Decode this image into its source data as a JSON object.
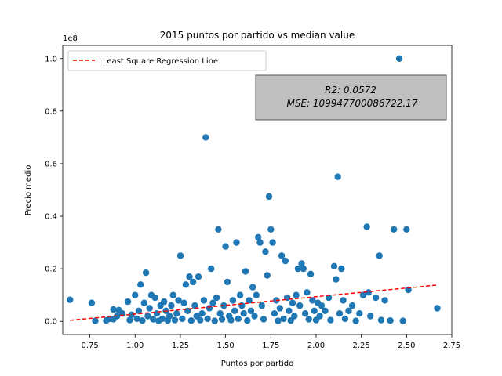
{
  "chart_data": {
    "type": "scatter",
    "title": "2015 puntos por partido vs median value",
    "xlabel": "Puntos por partido",
    "ylabel": "Precio medio",
    "y_offset_label": "1e8",
    "xlim": [
      0.6,
      2.75
    ],
    "ylim": [
      -0.05,
      1.05
    ],
    "xticks": [
      0.75,
      1.0,
      1.25,
      1.5,
      1.75,
      2.0,
      2.25,
      2.5,
      2.75
    ],
    "xtick_labels": [
      "0.75",
      "1.00",
      "1.25",
      "1.50",
      "1.75",
      "2.00",
      "2.25",
      "2.50",
      "2.75"
    ],
    "yticks": [
      0.0,
      0.2,
      0.4,
      0.6,
      0.8,
      1.0
    ],
    "ytick_labels": [
      "0.0",
      "0.2",
      "0.4",
      "0.6",
      "0.8",
      "1.0"
    ],
    "grid": false,
    "legend": {
      "placement": "upper-left",
      "entries": [
        "Least Square Regression Line"
      ]
    },
    "stats_box": {
      "r2": "R2: 0.0572",
      "mse": "MSE: 109947700086722.17",
      "placement": "upper-right"
    },
    "colors": {
      "points": "#1f77b4",
      "line": "#ff0000",
      "stats_box_fill": "#bfbfbf"
    },
    "regression_line": {
      "x": [
        0.64,
        2.67
      ],
      "y": [
        0.004,
        0.138
      ]
    },
    "series": [
      {
        "points": [
          [
            0.64,
            0.082
          ],
          [
            0.76,
            0.07
          ],
          [
            0.78,
            0.002
          ],
          [
            0.84,
            0.003
          ],
          [
            0.86,
            0.01
          ],
          [
            0.88,
            0.045
          ],
          [
            0.88,
            0.008
          ],
          [
            0.9,
            0.02
          ],
          [
            0.91,
            0.043
          ],
          [
            0.93,
            0.03
          ],
          [
            0.96,
            0.075
          ],
          [
            0.97,
            0.005
          ],
          [
            0.98,
            0.025
          ],
          [
            1.0,
            0.1
          ],
          [
            1.01,
            0.01
          ],
          [
            1.02,
            0.04
          ],
          [
            1.03,
            0.14
          ],
          [
            1.04,
            0.003
          ],
          [
            1.05,
            0.07
          ],
          [
            1.06,
            0.185
          ],
          [
            1.07,
            0.02
          ],
          [
            1.08,
            0.05
          ],
          [
            1.09,
            0.1
          ],
          [
            1.1,
            0.008
          ],
          [
            1.11,
            0.09
          ],
          [
            1.12,
            0.03
          ],
          [
            1.13,
            0.002
          ],
          [
            1.14,
            0.06
          ],
          [
            1.15,
            0.01
          ],
          [
            1.16,
            0.075
          ],
          [
            1.17,
            0.04
          ],
          [
            1.18,
            0.003
          ],
          [
            1.19,
            0.02
          ],
          [
            1.2,
            0.06
          ],
          [
            1.21,
            0.1
          ],
          [
            1.22,
            0.005
          ],
          [
            1.23,
            0.03
          ],
          [
            1.24,
            0.08
          ],
          [
            1.25,
            0.25
          ],
          [
            1.26,
            0.01
          ],
          [
            1.27,
            0.07
          ],
          [
            1.28,
            0.14
          ],
          [
            1.29,
            0.04
          ],
          [
            1.3,
            0.17
          ],
          [
            1.31,
            0.003
          ],
          [
            1.32,
            0.15
          ],
          [
            1.33,
            0.06
          ],
          [
            1.34,
            0.02
          ],
          [
            1.35,
            0.17
          ],
          [
            1.36,
            0.005
          ],
          [
            1.37,
            0.03
          ],
          [
            1.38,
            0.08
          ],
          [
            1.39,
            0.7
          ],
          [
            1.4,
            0.01
          ],
          [
            1.41,
            0.05
          ],
          [
            1.42,
            0.2
          ],
          [
            1.43,
            0.07
          ],
          [
            1.44,
            0.002
          ],
          [
            1.45,
            0.09
          ],
          [
            1.46,
            0.35
          ],
          [
            1.47,
            0.03
          ],
          [
            1.48,
            0.008
          ],
          [
            1.49,
            0.06
          ],
          [
            1.5,
            0.285
          ],
          [
            1.51,
            0.15
          ],
          [
            1.52,
            0.02
          ],
          [
            1.53,
            0.005
          ],
          [
            1.54,
            0.08
          ],
          [
            1.55,
            0.04
          ],
          [
            1.56,
            0.3
          ],
          [
            1.57,
            0.01
          ],
          [
            1.58,
            0.1
          ],
          [
            1.59,
            0.06
          ],
          [
            1.6,
            0.03
          ],
          [
            1.61,
            0.19
          ],
          [
            1.62,
            0.003
          ],
          [
            1.63,
            0.08
          ],
          [
            1.64,
            0.04
          ],
          [
            1.65,
            0.13
          ],
          [
            1.66,
            0.02
          ],
          [
            1.67,
            0.1
          ],
          [
            1.68,
            0.32
          ],
          [
            1.69,
            0.3
          ],
          [
            1.7,
            0.06
          ],
          [
            1.71,
            0.008
          ],
          [
            1.72,
            0.265
          ],
          [
            1.73,
            0.175
          ],
          [
            1.74,
            0.475
          ],
          [
            1.75,
            0.35
          ],
          [
            1.76,
            0.3
          ],
          [
            1.77,
            0.03
          ],
          [
            1.78,
            0.08
          ],
          [
            1.79,
            0.002
          ],
          [
            1.8,
            0.05
          ],
          [
            1.81,
            0.25
          ],
          [
            1.82,
            0.01
          ],
          [
            1.83,
            0.23
          ],
          [
            1.84,
            0.09
          ],
          [
            1.85,
            0.04
          ],
          [
            1.86,
            0.003
          ],
          [
            1.87,
            0.07
          ],
          [
            1.88,
            0.02
          ],
          [
            1.89,
            0.1
          ],
          [
            1.9,
            0.2
          ],
          [
            1.91,
            0.06
          ],
          [
            1.92,
            0.22
          ],
          [
            1.93,
            0.2
          ],
          [
            1.94,
            0.03
          ],
          [
            1.95,
            0.11
          ],
          [
            1.96,
            0.008
          ],
          [
            1.97,
            0.18
          ],
          [
            1.98,
            0.08
          ],
          [
            1.99,
            0.04
          ],
          [
            2.0,
            0.005
          ],
          [
            2.01,
            0.07
          ],
          [
            2.02,
            0.02
          ],
          [
            2.03,
            0.06
          ],
          [
            2.05,
            0.04
          ],
          [
            2.07,
            0.09
          ],
          [
            2.08,
            0.005
          ],
          [
            2.1,
            0.21
          ],
          [
            2.11,
            0.16
          ],
          [
            2.12,
            0.55
          ],
          [
            2.13,
            0.03
          ],
          [
            2.14,
            0.2
          ],
          [
            2.15,
            0.08
          ],
          [
            2.16,
            0.01
          ],
          [
            2.18,
            0.04
          ],
          [
            2.2,
            0.06
          ],
          [
            2.22,
            0.002
          ],
          [
            2.24,
            0.03
          ],
          [
            2.26,
            0.1
          ],
          [
            2.28,
            0.36
          ],
          [
            2.29,
            0.11
          ],
          [
            2.3,
            0.02
          ],
          [
            2.33,
            0.09
          ],
          [
            2.35,
            0.25
          ],
          [
            2.36,
            0.005
          ],
          [
            2.38,
            0.08
          ],
          [
            2.41,
            0.003
          ],
          [
            2.43,
            0.35
          ],
          [
            2.46,
            1.0
          ],
          [
            2.48,
            0.002
          ],
          [
            2.5,
            0.35
          ],
          [
            2.51,
            0.12
          ],
          [
            2.67,
            0.05
          ]
        ]
      }
    ]
  }
}
